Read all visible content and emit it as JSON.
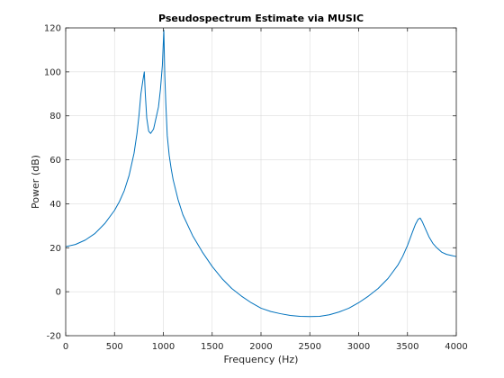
{
  "chart_data": {
    "type": "line",
    "title": "Pseudospectrum Estimate via MUSIC",
    "xlabel": "Frequency (Hz)",
    "ylabel": "Power (dB)",
    "xlim": [
      0,
      4000
    ],
    "ylim": [
      -20,
      120
    ],
    "xticks": [
      0,
      500,
      1000,
      1500,
      2000,
      2500,
      3000,
      3500,
      4000
    ],
    "yticks": [
      -20,
      0,
      20,
      40,
      60,
      80,
      100,
      120
    ],
    "grid": true,
    "colors": {
      "line": "#0072bd",
      "axes": "#262626",
      "grid": "#dcdcdc"
    },
    "series": [
      {
        "x": [
          0,
          100,
          200,
          300,
          400,
          500,
          550,
          600,
          650,
          700,
          730,
          750,
          770,
          790,
          805,
          815,
          830,
          850,
          870,
          900,
          930,
          950,
          970,
          990,
          1005,
          1015,
          1025,
          1040,
          1060,
          1080,
          1100,
          1150,
          1200,
          1300,
          1400,
          1500,
          1600,
          1700,
          1800,
          1900,
          2000,
          2100,
          2200,
          2300,
          2400,
          2500,
          2600,
          2700,
          2800,
          2900,
          3000,
          3100,
          3200,
          3300,
          3400,
          3450,
          3500,
          3550,
          3580,
          3610,
          3630,
          3650,
          3680,
          3720,
          3760,
          3800,
          3850,
          3900,
          3950,
          4000
        ],
        "y": [
          20.5,
          21.5,
          23.5,
          26.5,
          31,
          37,
          41,
          46,
          53,
          63,
          72,
          80,
          90,
          96,
          100,
          90,
          79,
          73,
          72,
          74,
          80,
          84,
          92,
          103,
          119,
          98,
          86,
          71,
          62,
          56,
          51,
          42,
          35,
          25.5,
          18,
          11.5,
          6,
          1.5,
          -2,
          -5,
          -7.5,
          -9,
          -10,
          -10.8,
          -11.2,
          -11.3,
          -11.2,
          -10.5,
          -9.2,
          -7.5,
          -5,
          -2,
          1.5,
          6,
          12,
          16,
          21,
          27,
          30.5,
          33,
          33.5,
          32,
          29,
          25,
          22,
          20,
          18,
          17,
          16.5,
          16
        ]
      }
    ]
  }
}
